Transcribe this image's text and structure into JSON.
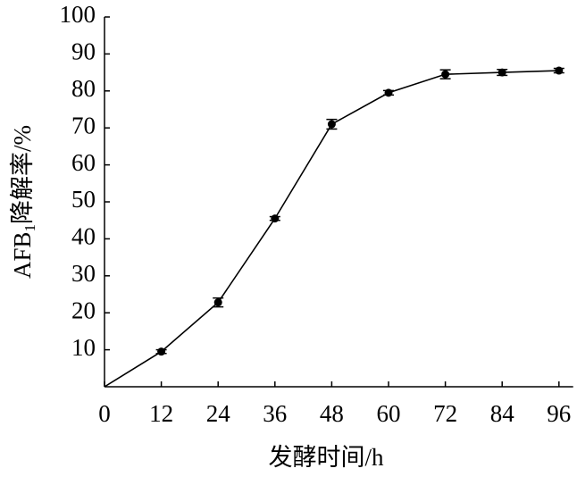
{
  "chart_data": {
    "type": "line",
    "x_label": "发酵时间/h",
    "y_label": {
      "main": "AFB",
      "subscript": "1",
      "rest": "降解率/%"
    },
    "x": [
      0,
      12,
      24,
      36,
      48,
      60,
      72,
      84,
      96
    ],
    "series": [
      {
        "color": "#000000",
        "values": [
          0,
          9.5,
          22.8,
          45.5,
          71,
          79.5,
          84.5,
          85,
          85.5
        ],
        "errors": [
          null,
          0.5,
          1.2,
          0.5,
          1.3,
          0.6,
          1.2,
          0.8,
          0.6
        ]
      }
    ],
    "xlim": [
      0,
      99
    ],
    "xticks": [
      0,
      12,
      24,
      36,
      48,
      60,
      72,
      84,
      96
    ],
    "ylim": [
      0,
      100
    ],
    "yticks": [
      10,
      20,
      30,
      40,
      50,
      60,
      70,
      80,
      90,
      100
    ],
    "grid": false
  }
}
